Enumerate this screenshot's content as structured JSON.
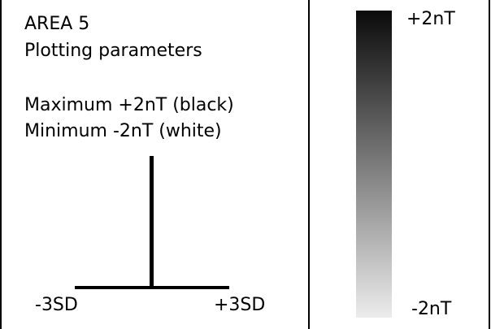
{
  "panel": {
    "area_title": "AREA 5",
    "params_title": "Plotting parameters",
    "maximum": "Maximum +2nT (black)",
    "minimum": "Minimum -2nT (white)"
  },
  "axis": {
    "left_label": "-3SD",
    "right_label": "+3SD"
  },
  "scale": {
    "top_label": "+2nT",
    "bottom_label": "-2nT",
    "color_max": "#0a0a0a",
    "color_min": "#ececec"
  }
}
